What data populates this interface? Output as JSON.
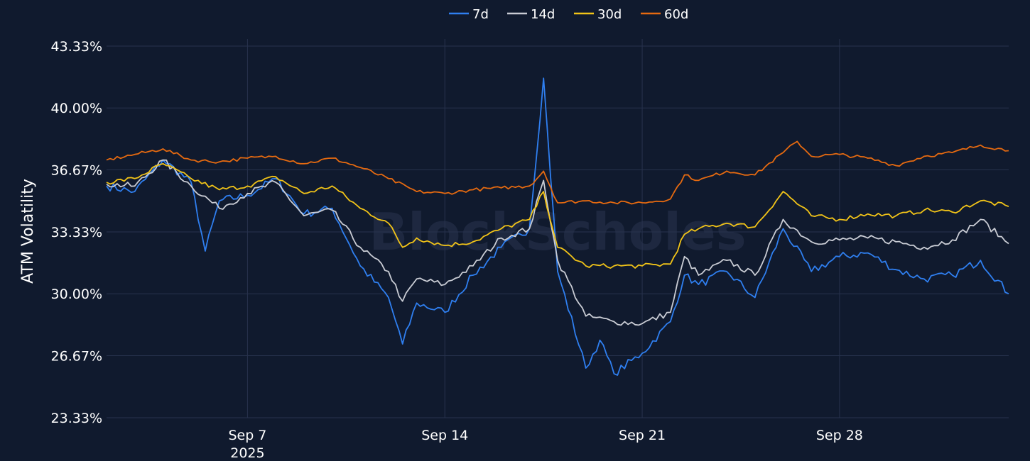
{
  "watermark": "BlockScholes",
  "chart_data": {
    "type": "line",
    "title": "",
    "xlabel": "",
    "ylabel": "ATM Volatility",
    "ylim": [
      23.33,
      43.33
    ],
    "yticks": [
      "23.33%",
      "26.67%",
      "30.00%",
      "33.33%",
      "36.67%",
      "40.00%",
      "43.33%"
    ],
    "xlim": [
      "2025-09-02",
      "2025-10-04"
    ],
    "xticks": [
      {
        "date": "2025-09-07",
        "label": "Sep 7",
        "sublabel": "2025"
      },
      {
        "date": "2025-09-14",
        "label": "Sep 14",
        "sublabel": ""
      },
      {
        "date": "2025-09-21",
        "label": "Sep 21",
        "sublabel": ""
      },
      {
        "date": "2025-09-28",
        "label": "Sep 28",
        "sublabel": ""
      }
    ],
    "grid": true,
    "legend_position": "top-center",
    "series": [
      {
        "name": "7d",
        "color": "#2f7ff0",
        "points": [
          [
            "2025-09-02",
            35.8
          ],
          [
            "2025-09-03",
            35.5
          ],
          [
            "2025-09-04",
            37.2
          ],
          [
            "2025-09-05",
            36.0
          ],
          [
            "2025-09-05T12",
            32.3
          ],
          [
            "2025-09-06",
            35.0
          ],
          [
            "2025-09-07",
            35.3
          ],
          [
            "2025-09-08",
            36.2
          ],
          [
            "2025-09-09",
            34.3
          ],
          [
            "2025-09-10",
            34.6
          ],
          [
            "2025-09-11",
            31.5
          ],
          [
            "2025-09-12",
            29.8
          ],
          [
            "2025-09-12T12",
            27.3
          ],
          [
            "2025-09-13",
            29.5
          ],
          [
            "2025-09-14",
            29.0
          ],
          [
            "2025-09-15",
            31.0
          ],
          [
            "2025-09-16",
            32.5
          ],
          [
            "2025-09-17",
            33.5
          ],
          [
            "2025-09-17T12",
            41.6
          ],
          [
            "2025-09-18",
            31.2
          ],
          [
            "2025-09-19",
            26.0
          ],
          [
            "2025-09-19T12",
            27.5
          ],
          [
            "2025-09-20",
            25.7
          ],
          [
            "2025-09-21",
            26.8
          ],
          [
            "2025-09-22",
            28.5
          ],
          [
            "2025-09-22T12",
            31.0
          ],
          [
            "2025-09-23",
            30.5
          ],
          [
            "2025-09-24",
            31.2
          ],
          [
            "2025-09-25",
            29.8
          ],
          [
            "2025-09-26",
            33.5
          ],
          [
            "2025-09-27",
            31.2
          ],
          [
            "2025-09-28",
            32.0
          ],
          [
            "2025-09-29",
            32.2
          ],
          [
            "2025-09-30",
            31.3
          ],
          [
            "2025-10-01",
            30.8
          ],
          [
            "2025-10-02",
            31.0
          ],
          [
            "2025-10-03",
            31.8
          ],
          [
            "2025-10-04",
            30.0
          ]
        ]
      },
      {
        "name": "14d",
        "color": "#c9ccd4",
        "points": [
          [
            "2025-09-02",
            35.9
          ],
          [
            "2025-09-03",
            35.8
          ],
          [
            "2025-09-04",
            37.2
          ],
          [
            "2025-09-05",
            35.8
          ],
          [
            "2025-09-06",
            34.6
          ],
          [
            "2025-09-07",
            35.4
          ],
          [
            "2025-09-08",
            36.0
          ],
          [
            "2025-09-09",
            34.2
          ],
          [
            "2025-09-10",
            34.5
          ],
          [
            "2025-09-11",
            32.5
          ],
          [
            "2025-09-12",
            31.2
          ],
          [
            "2025-09-12T12",
            29.6
          ],
          [
            "2025-09-13",
            30.8
          ],
          [
            "2025-09-14",
            30.5
          ],
          [
            "2025-09-15",
            31.5
          ],
          [
            "2025-09-16",
            33.0
          ],
          [
            "2025-09-17",
            33.5
          ],
          [
            "2025-09-17T12",
            36.1
          ],
          [
            "2025-09-18",
            31.8
          ],
          [
            "2025-09-19",
            28.8
          ],
          [
            "2025-09-20",
            28.5
          ],
          [
            "2025-09-21",
            28.4
          ],
          [
            "2025-09-22",
            29.0
          ],
          [
            "2025-09-22T12",
            32.0
          ],
          [
            "2025-09-23",
            31.0
          ],
          [
            "2025-09-24",
            31.8
          ],
          [
            "2025-09-25",
            31.0
          ],
          [
            "2025-09-26",
            34.0
          ],
          [
            "2025-09-27",
            32.8
          ],
          [
            "2025-09-28",
            32.9
          ],
          [
            "2025-09-29",
            33.0
          ],
          [
            "2025-09-30",
            32.8
          ],
          [
            "2025-10-01",
            32.5
          ],
          [
            "2025-10-02",
            32.9
          ],
          [
            "2025-10-03",
            34.0
          ],
          [
            "2025-10-04",
            32.7
          ]
        ]
      },
      {
        "name": "30d",
        "color": "#f2c418",
        "points": [
          [
            "2025-09-02",
            36.0
          ],
          [
            "2025-09-03",
            36.2
          ],
          [
            "2025-09-04",
            37.0
          ],
          [
            "2025-09-05",
            36.2
          ],
          [
            "2025-09-06",
            35.6
          ],
          [
            "2025-09-07",
            35.8
          ],
          [
            "2025-09-08",
            36.3
          ],
          [
            "2025-09-09",
            35.4
          ],
          [
            "2025-09-10",
            35.8
          ],
          [
            "2025-09-11",
            34.6
          ],
          [
            "2025-09-12",
            33.8
          ],
          [
            "2025-09-12T12",
            32.5
          ],
          [
            "2025-09-13",
            33.0
          ],
          [
            "2025-09-14",
            32.6
          ],
          [
            "2025-09-15",
            32.8
          ],
          [
            "2025-09-16",
            33.5
          ],
          [
            "2025-09-17",
            34.0
          ],
          [
            "2025-09-17T12",
            35.5
          ],
          [
            "2025-09-18",
            32.5
          ],
          [
            "2025-09-19",
            31.5
          ],
          [
            "2025-09-20",
            31.5
          ],
          [
            "2025-09-21",
            31.5
          ],
          [
            "2025-09-22",
            31.6
          ],
          [
            "2025-09-22T12",
            33.2
          ],
          [
            "2025-09-23",
            33.5
          ],
          [
            "2025-09-24",
            33.8
          ],
          [
            "2025-09-25",
            33.6
          ],
          [
            "2025-09-26",
            35.5
          ],
          [
            "2025-09-27",
            34.2
          ],
          [
            "2025-09-28",
            34.0
          ],
          [
            "2025-09-29",
            34.3
          ],
          [
            "2025-09-30",
            34.2
          ],
          [
            "2025-10-01",
            34.5
          ],
          [
            "2025-10-02",
            34.4
          ],
          [
            "2025-10-03",
            35.0
          ],
          [
            "2025-10-04",
            34.7
          ]
        ]
      },
      {
        "name": "60d",
        "color": "#e66a10",
        "points": [
          [
            "2025-09-02",
            37.2
          ],
          [
            "2025-09-03",
            37.5
          ],
          [
            "2025-09-04",
            37.8
          ],
          [
            "2025-09-05",
            37.2
          ],
          [
            "2025-09-06",
            37.1
          ],
          [
            "2025-09-07",
            37.3
          ],
          [
            "2025-09-08",
            37.4
          ],
          [
            "2025-09-09",
            37.0
          ],
          [
            "2025-09-10",
            37.3
          ],
          [
            "2025-09-11",
            36.8
          ],
          [
            "2025-09-12",
            36.2
          ],
          [
            "2025-09-13",
            35.5
          ],
          [
            "2025-09-14",
            35.4
          ],
          [
            "2025-09-15",
            35.6
          ],
          [
            "2025-09-16",
            35.7
          ],
          [
            "2025-09-17",
            35.8
          ],
          [
            "2025-09-17T12",
            36.6
          ],
          [
            "2025-09-18",
            34.9
          ],
          [
            "2025-09-19",
            35.0
          ],
          [
            "2025-09-20",
            34.9
          ],
          [
            "2025-09-21",
            34.9
          ],
          [
            "2025-09-22",
            35.1
          ],
          [
            "2025-09-22T12",
            36.4
          ],
          [
            "2025-09-23",
            36.1
          ],
          [
            "2025-09-24",
            36.6
          ],
          [
            "2025-09-25",
            36.4
          ],
          [
            "2025-09-26",
            37.6
          ],
          [
            "2025-09-26T12",
            38.2
          ],
          [
            "2025-09-27",
            37.4
          ],
          [
            "2025-09-28",
            37.5
          ],
          [
            "2025-09-29",
            37.3
          ],
          [
            "2025-09-30",
            36.9
          ],
          [
            "2025-10-01",
            37.4
          ],
          [
            "2025-10-02",
            37.6
          ],
          [
            "2025-10-03",
            38.0
          ],
          [
            "2025-10-04",
            37.7
          ]
        ]
      }
    ]
  }
}
